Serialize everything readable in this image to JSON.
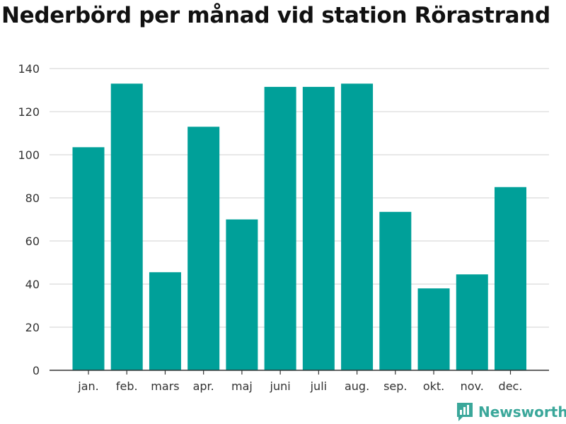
{
  "title": "Nederbörd per månad vid station Rörastrand",
  "brand": {
    "name": "Newsworthy",
    "icon": "bar-chart-logo-icon",
    "color": "#3aa79a"
  },
  "colors": {
    "bar": "#00a099",
    "grid": "#d9d9d9",
    "axis": "#333333"
  },
  "chart_data": {
    "type": "bar",
    "title": "Nederbörd per månad vid station Rörastrand",
    "xlabel": "",
    "ylabel": "",
    "categories": [
      "jan.",
      "feb.",
      "mars",
      "apr.",
      "maj",
      "juni",
      "juli",
      "aug.",
      "sep.",
      "okt.",
      "nov.",
      "dec."
    ],
    "values": [
      103.5,
      133,
      45.5,
      113,
      70,
      131.5,
      131.5,
      133,
      73.5,
      38,
      44.5,
      85
    ],
    "ylim": [
      0,
      140
    ],
    "yticks": [
      0,
      20,
      40,
      60,
      80,
      100,
      120,
      140
    ],
    "grid": true,
    "legend": "none"
  }
}
